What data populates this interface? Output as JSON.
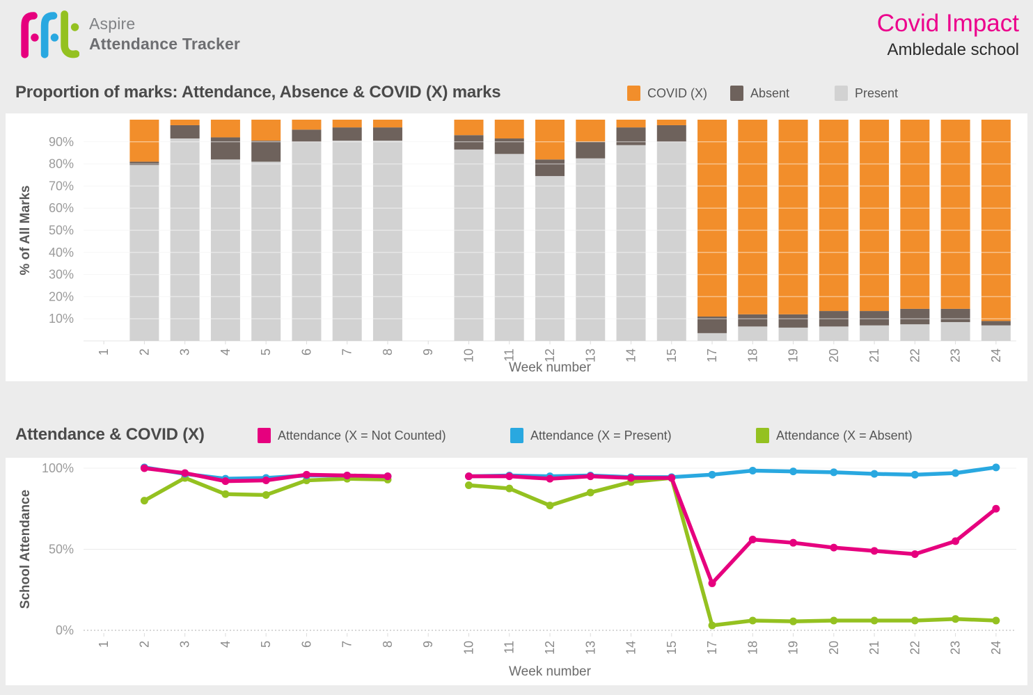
{
  "header": {
    "logo": {
      "brand": "fft",
      "product_line1": "Aspire",
      "product_line2": "Attendance Tracker"
    },
    "report_title": "Covid Impact",
    "school_name": "Ambledale school"
  },
  "colors": {
    "brand_pink": "#EC008C",
    "page_background": "#ECECEC",
    "panel_background": "#FFFFFF",
    "logo_pink": "#E6007E",
    "logo_blue": "#29A8E0",
    "logo_green": "#94C120"
  },
  "chart_data": [
    {
      "type": "bar",
      "stacked": true,
      "title": "Proportion of marks: Attendance, Absence & COVID (X) marks",
      "xlabel": "Week number",
      "ylabel": "% of All Marks",
      "ylim": [
        0,
        100
      ],
      "yticks": [
        10,
        20,
        30,
        40,
        50,
        60,
        70,
        80,
        90
      ],
      "grid": true,
      "legend_position": "top-right",
      "categories": [
        1,
        2,
        3,
        4,
        5,
        6,
        7,
        8,
        9,
        10,
        11,
        12,
        13,
        14,
        15,
        17,
        18,
        19,
        20,
        21,
        22,
        23,
        24
      ],
      "series": [
        {
          "name": "Present",
          "color": "#D2D2D2",
          "values": [
            null,
            79.5,
            91.5,
            82,
            81,
            90,
            90.5,
            90.5,
            null,
            86.5,
            84.5,
            74.5,
            82.5,
            88.5,
            90,
            3.5,
            6.5,
            6,
            6.5,
            7,
            7.5,
            8.5,
            7
          ]
        },
        {
          "name": "Absent",
          "color": "#6E625C",
          "values": [
            null,
            1.5,
            6,
            10,
            9.5,
            5.5,
            6,
            6,
            null,
            6.5,
            7,
            7.5,
            7.5,
            8,
            7.5,
            7.5,
            5.5,
            6,
            7,
            6.5,
            7,
            6,
            2
          ]
        },
        {
          "name": "COVID (X)",
          "color": "#F28E2B",
          "values": [
            null,
            19,
            2.5,
            8,
            9.5,
            4.5,
            3.5,
            3.5,
            null,
            7,
            8.5,
            18,
            10,
            3.5,
            2.5,
            89,
            88,
            88,
            86.5,
            86.5,
            85.5,
            85.5,
            91
          ]
        }
      ]
    },
    {
      "type": "line",
      "title": "Attendance & COVID (X)",
      "xlabel": "Week number",
      "ylabel": "School Attendance",
      "ylim": [
        0,
        100
      ],
      "yticks": [
        0,
        50,
        100
      ],
      "grid": true,
      "legend_position": "top",
      "categories": [
        1,
        2,
        3,
        4,
        5,
        6,
        7,
        8,
        9,
        10,
        11,
        12,
        13,
        14,
        15,
        17,
        18,
        19,
        20,
        21,
        22,
        23,
        24
      ],
      "series": [
        {
          "name": "Attendance (X = Not Counted)",
          "color": "#E6007E",
          "values": [
            null,
            100,
            97,
            92,
            92.5,
            96,
            95.5,
            95,
            null,
            95,
            95,
            93.5,
            95,
            94,
            94,
            29,
            56,
            54,
            51,
            49,
            47,
            55,
            75
          ]
        },
        {
          "name": "Attendance (X = Present)",
          "color": "#29A8E0",
          "values": [
            null,
            100.5,
            96.5,
            93.5,
            94,
            95.5,
            95.5,
            95,
            null,
            95,
            95.5,
            95,
            95.5,
            94.5,
            94.5,
            96,
            98.5,
            98,
            97.5,
            96.5,
            96,
            97,
            100.5
          ]
        },
        {
          "name": "Attendance (X = Absent)",
          "color": "#94C120",
          "values": [
            null,
            80,
            94,
            84,
            83.5,
            92.5,
            93.5,
            93,
            null,
            89.5,
            87.5,
            77,
            85,
            91.5,
            94,
            3,
            6,
            5.5,
            6,
            6,
            6,
            7,
            6
          ]
        }
      ]
    }
  ]
}
